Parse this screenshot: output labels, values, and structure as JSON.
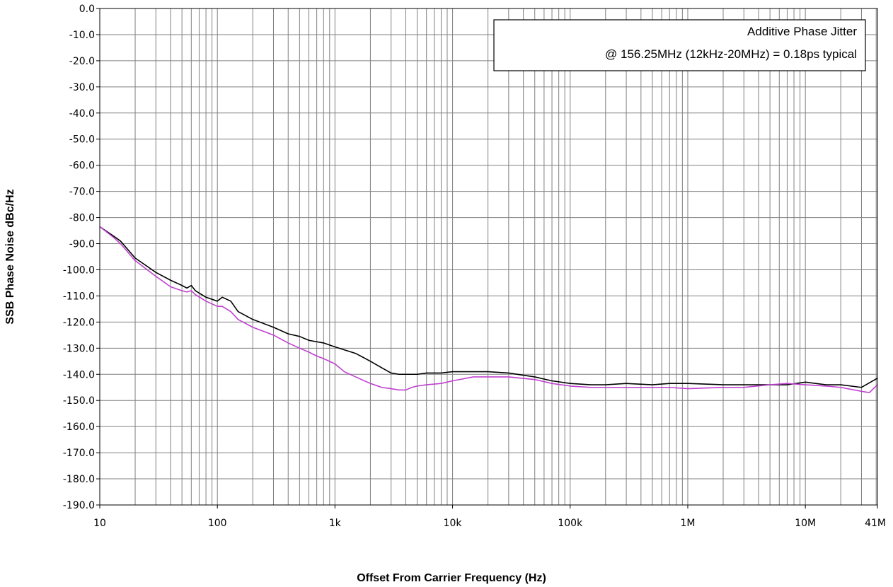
{
  "chart_data": {
    "type": "line",
    "title": "",
    "xlabel": "Offset From Carrier Frequency (Hz)",
    "ylabel": "SSB Phase Noise dBc/Hz",
    "x_scale": "log",
    "xlim": [
      10,
      41000000
    ],
    "ylim": [
      -190,
      0
    ],
    "grid": true,
    "x_ticks": [
      {
        "value": 10,
        "label": "10"
      },
      {
        "value": 100,
        "label": "100"
      },
      {
        "value": 1000,
        "label": "1k"
      },
      {
        "value": 10000,
        "label": "10k"
      },
      {
        "value": 100000,
        "label": "100k"
      },
      {
        "value": 1000000,
        "label": "1M"
      },
      {
        "value": 10000000,
        "label": "10M"
      },
      {
        "value": 41000000,
        "label": "41M"
      }
    ],
    "y_ticks": [
      {
        "value": 0,
        "label": "0.0"
      },
      {
        "value": -10,
        "label": "-10.0"
      },
      {
        "value": -20,
        "label": "-20.0"
      },
      {
        "value": -30,
        "label": "-30.0"
      },
      {
        "value": -40,
        "label": "-40.0"
      },
      {
        "value": -50,
        "label": "-50.0"
      },
      {
        "value": -60,
        "label": "-60.0"
      },
      {
        "value": -70,
        "label": "-70.0"
      },
      {
        "value": -80,
        "label": "-80.0"
      },
      {
        "value": -90,
        "label": "-90.0"
      },
      {
        "value": -100,
        "label": "-100.0"
      },
      {
        "value": -110,
        "label": "-110.0"
      },
      {
        "value": -120,
        "label": "-120.0"
      },
      {
        "value": -130,
        "label": "-130.0"
      },
      {
        "value": -140,
        "label": "-140.0"
      },
      {
        "value": -150,
        "label": "-150.0"
      },
      {
        "value": -160,
        "label": "-160.0"
      },
      {
        "value": -170,
        "label": "-170.0"
      },
      {
        "value": -180,
        "label": "-180.0"
      },
      {
        "value": -190,
        "label": "-190.0"
      }
    ],
    "annotation": {
      "line1": "Additive Phase Jitter",
      "line2": "@ 156.25MHz (12kHz-20MHz) = 0.18ps typical"
    },
    "series": [
      {
        "color": "#000000",
        "x": [
          10,
          13,
          15,
          20,
          30,
          40,
          50,
          55,
          60,
          65,
          80,
          100,
          110,
          130,
          150,
          200,
          300,
          400,
          500,
          600,
          800,
          1000,
          1500,
          2000,
          2500,
          3000,
          3500,
          4000,
          5000,
          6000,
          8000,
          10000,
          15000,
          20000,
          30000,
          50000,
          70000,
          100000,
          150000,
          200000,
          300000,
          500000,
          700000,
          1000000,
          2000000,
          3000000,
          5000000,
          7000000,
          10000000,
          15000000,
          20000000,
          30000000,
          41000000
        ],
        "y": [
          -83.5,
          -87,
          -89,
          -95.5,
          -101,
          -104,
          -106,
          -107,
          -106,
          -108,
          -110.5,
          -112,
          -110.5,
          -112,
          -116,
          -119,
          -122,
          -124.5,
          -125.5,
          -127,
          -128,
          -129.5,
          -132,
          -135,
          -137.5,
          -139.5,
          -140,
          -140,
          -140,
          -139.5,
          -139.5,
          -139,
          -139,
          -139,
          -139.5,
          -141,
          -142.5,
          -143.5,
          -144,
          -144,
          -143.5,
          -144,
          -143.5,
          -143.5,
          -144,
          -144,
          -144,
          -144,
          -143,
          -144,
          -144,
          -145,
          -141.5
        ]
      },
      {
        "color": "#c040d0",
        "x": [
          10,
          13,
          15,
          20,
          30,
          40,
          50,
          55,
          60,
          65,
          80,
          100,
          110,
          130,
          150,
          200,
          300,
          400,
          500,
          600,
          700,
          800,
          1000,
          1200,
          1500,
          2000,
          2500,
          3000,
          3500,
          4000,
          4500,
          5000,
          6000,
          8000,
          10000,
          15000,
          20000,
          30000,
          50000,
          70000,
          100000,
          150000,
          200000,
          300000,
          500000,
          700000,
          1000000,
          2000000,
          3000000,
          5000000,
          7000000,
          10000000,
          15000000,
          20000000,
          30000000,
          35000000,
          41000000
        ],
        "y": [
          -83.5,
          -87.5,
          -90,
          -96.5,
          -102.5,
          -106.5,
          -108,
          -108.5,
          -108,
          -109.5,
          -112,
          -114,
          -114,
          -116,
          -119,
          -122,
          -125,
          -128,
          -130,
          -131.5,
          -133,
          -134,
          -136,
          -139,
          -141,
          -143.5,
          -145,
          -145.5,
          -146,
          -146,
          -145,
          -144.5,
          -144,
          -143.5,
          -142.5,
          -141,
          -141,
          -141,
          -142,
          -143.5,
          -144.5,
          -145,
          -145,
          -145,
          -145,
          -145,
          -145.5,
          -145,
          -145,
          -144,
          -143.5,
          -144,
          -144.5,
          -145,
          -146.5,
          -147,
          -144
        ]
      }
    ]
  }
}
